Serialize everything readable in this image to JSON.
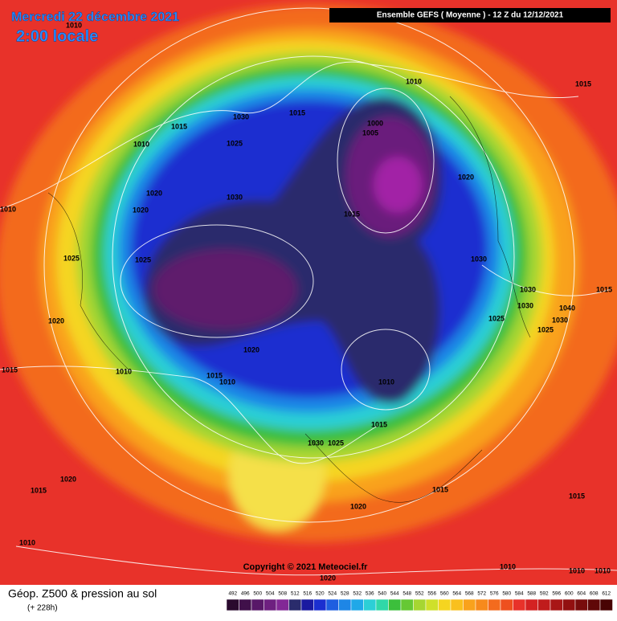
{
  "header": {
    "title": "Mercredi 22 décembre 2021",
    "time": "2:00 locale",
    "run": "Ensemble GEFS  ( Moyenne )  -  12 Z du 12/12/2021"
  },
  "map": {
    "copyright": "Copyright © 2021 Meteociel.fr",
    "isobar_labels": [
      "1010",
      "1010",
      "1015",
      "1015",
      "1030",
      "1015",
      "1000",
      "1005",
      "1010",
      "1025",
      "1020",
      "1020",
      "1030",
      "1010",
      "1020",
      "1015",
      "1025",
      "1025",
      "1030",
      "1030",
      "1015",
      "1030",
      "1040",
      "1025",
      "1030",
      "1020",
      "1025",
      "1020",
      "1015",
      "1010",
      "1015",
      "1010",
      "1010",
      "1015",
      "1030",
      "1025",
      "1020",
      "1015",
      "1015",
      "1015",
      "1020",
      "1010",
      "1010",
      "1010",
      "1010",
      "1020"
    ]
  },
  "footer": {
    "title": "Géop. Z500 & pression au sol",
    "lead": "(+ 228h)",
    "scale_labels": [
      "492",
      "496",
      "500",
      "504",
      "508",
      "512",
      "516",
      "520",
      "524",
      "528",
      "532",
      "536",
      "540",
      "544",
      "548",
      "552",
      "556",
      "560",
      "564",
      "568",
      "572",
      "576",
      "580",
      "584",
      "588",
      "592",
      "596",
      "600",
      "604",
      "608",
      "612"
    ]
  }
}
